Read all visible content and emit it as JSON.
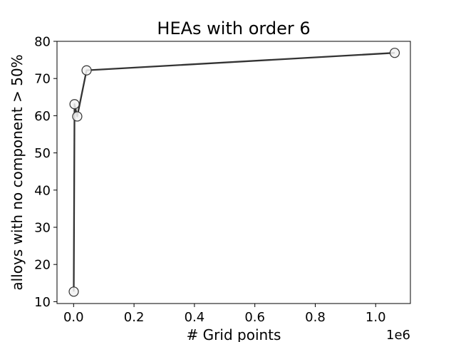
{
  "chart_data": {
    "type": "line",
    "title": "HEAs with order 6",
    "xlabel": "# Grid points",
    "ylabel": "alloys with no component > 50%",
    "x_offset_label": "1e6",
    "xlim": [
      -0.055,
      1.115
    ],
    "ylim": [
      9.5,
      80
    ],
    "xticks": [
      0.0,
      0.2,
      0.4,
      0.6,
      0.8,
      1.0
    ],
    "xtick_labels": [
      "0.0",
      "0.2",
      "0.4",
      "0.6",
      "0.8",
      "1.0"
    ],
    "yticks": [
      10,
      20,
      30,
      40,
      50,
      60,
      70,
      80
    ],
    "ytick_labels": [
      "10",
      "20",
      "30",
      "40",
      "50",
      "60",
      "70",
      "80"
    ],
    "grid": false,
    "line_color": "#333333",
    "marker_edge_color": "#333333",
    "marker_face_color": "#f2f2f2",
    "series": [
      {
        "x": [
          0.0005,
          0.003,
          0.012,
          0.043,
          1.063
        ],
        "y": [
          12.7,
          63.1,
          59.8,
          72.2,
          76.9
        ]
      }
    ]
  }
}
